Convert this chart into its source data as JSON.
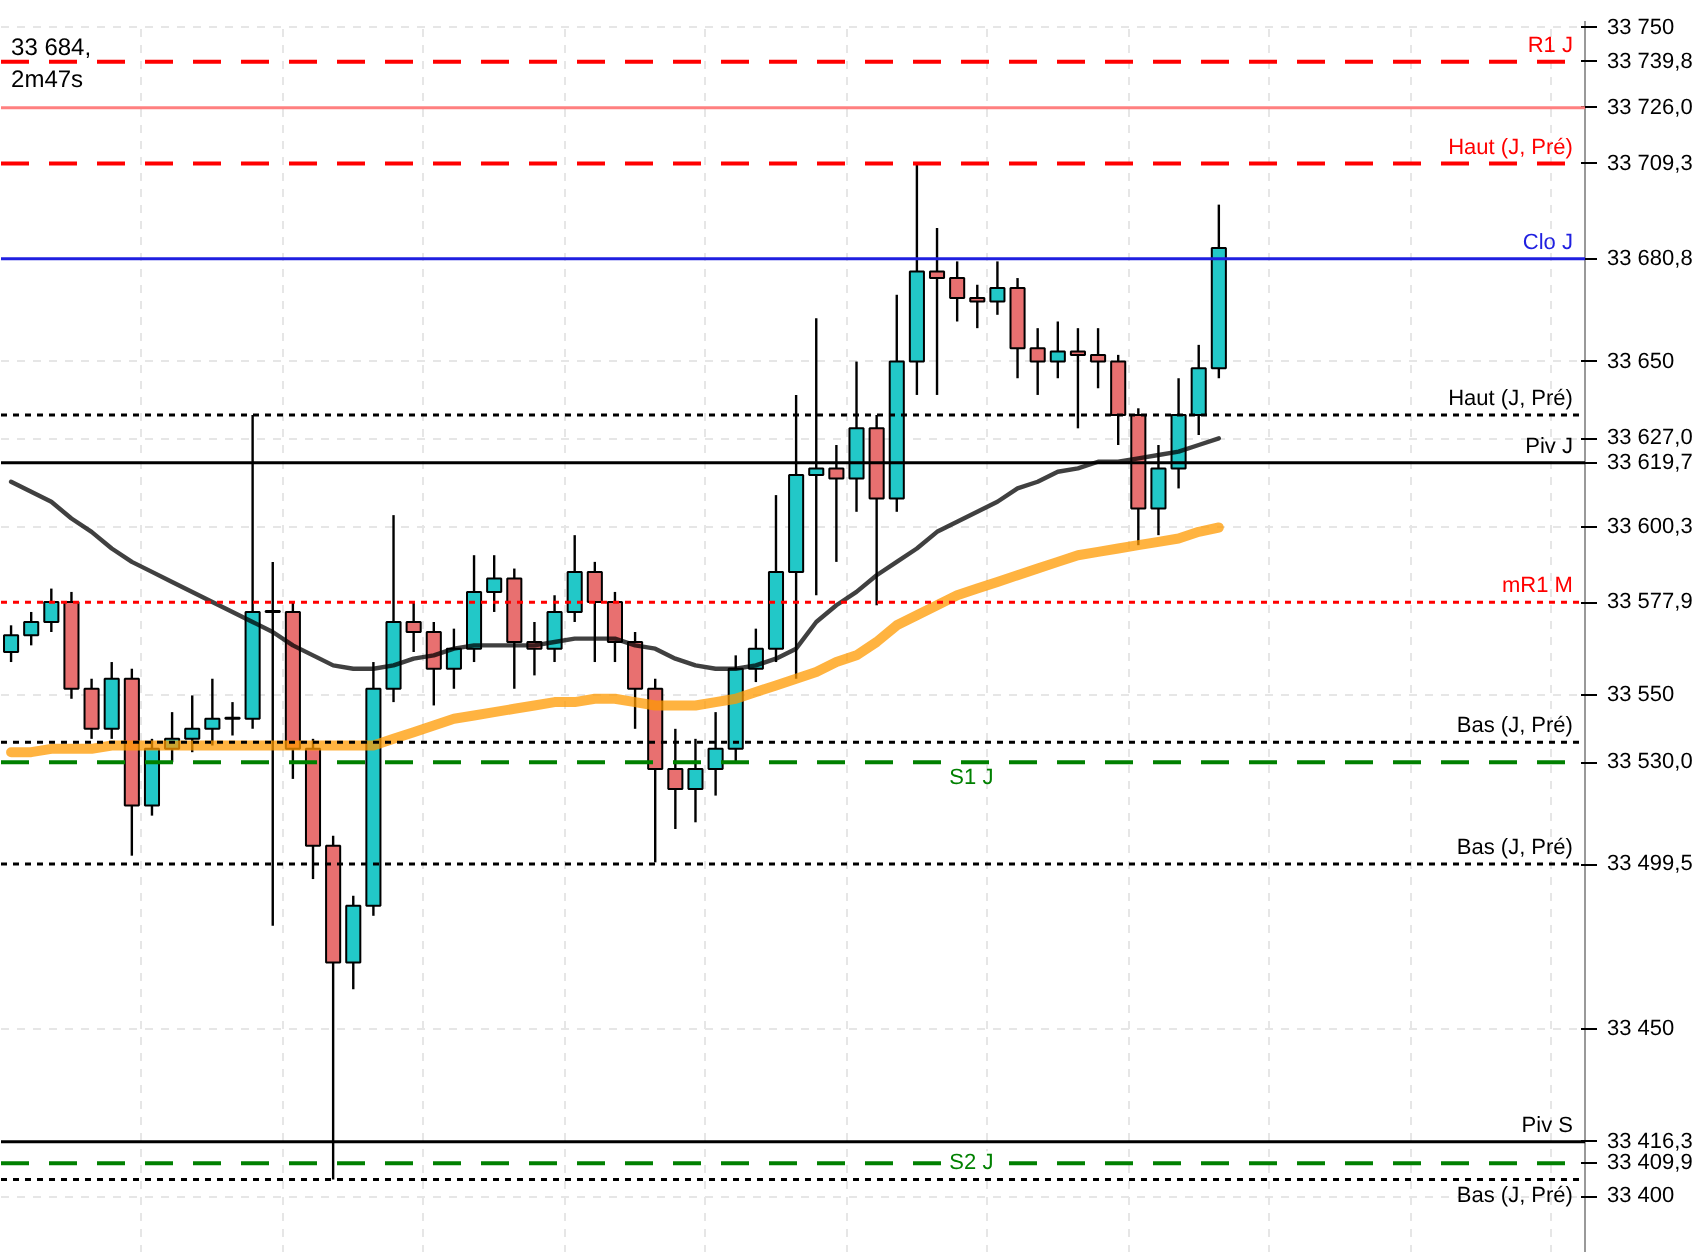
{
  "chart_data": {
    "type": "candlestick",
    "categories": [
      null,
      null,
      null,
      null,
      null,
      null,
      null,
      null,
      null,
      null,
      null,
      null,
      null,
      null,
      null,
      null,
      null,
      null,
      null,
      null,
      null,
      null,
      null,
      null,
      null,
      null,
      null,
      null,
      null,
      null,
      null,
      null,
      null,
      null,
      null,
      null,
      null,
      null,
      null,
      null,
      null,
      null,
      null,
      null,
      null,
      null,
      null,
      null,
      null,
      null,
      null,
      null,
      null,
      null,
      null,
      null,
      null,
      null,
      null,
      null,
      null
    ],
    "ohlc": [
      [
        33563,
        33571,
        33560,
        33568
      ],
      [
        33568,
        33575,
        33565,
        33572
      ],
      [
        33572,
        33582,
        33569,
        33578
      ],
      [
        33578,
        33581,
        33549,
        33552
      ],
      [
        33552,
        33555,
        33537,
        33540
      ],
      [
        33540,
        33560,
        33537,
        33555
      ],
      [
        33555,
        33558,
        33502,
        33517
      ],
      [
        33517,
        33537,
        33514,
        33534
      ],
      [
        33534,
        33545,
        33530,
        33537
      ],
      [
        33537,
        33550,
        33533,
        33540
      ],
      [
        33540,
        33555,
        33535,
        33543
      ],
      [
        33543,
        33548,
        33538,
        33543
      ],
      [
        33543,
        33634,
        33540,
        33575
      ],
      [
        33575,
        33590,
        33481,
        33575
      ],
      [
        33575,
        33578,
        33525,
        33534
      ],
      [
        33534,
        33537,
        33495,
        33505
      ],
      [
        33505,
        33508,
        33405,
        33470
      ],
      [
        33470,
        33490,
        33462,
        33487
      ],
      [
        33487,
        33560,
        33484,
        33552
      ],
      [
        33552,
        33604,
        33548,
        33572
      ],
      [
        33572,
        33578,
        33563,
        33569
      ],
      [
        33569,
        33572,
        33547,
        33558
      ],
      [
        33558,
        33570,
        33552,
        33564
      ],
      [
        33564,
        33592,
        33560,
        33581
      ],
      [
        33581,
        33592,
        33575,
        33585
      ],
      [
        33585,
        33588,
        33552,
        33566
      ],
      [
        33566,
        33572,
        33556,
        33564
      ],
      [
        33564,
        33580,
        33560,
        33575
      ],
      [
        33575,
        33598,
        33572,
        33587
      ],
      [
        33587,
        33590,
        33560,
        33578
      ],
      [
        33578,
        33581,
        33560,
        33566
      ],
      [
        33566,
        33569,
        33540,
        33552
      ],
      [
        33552,
        33555,
        33500,
        33528
      ],
      [
        33528,
        33540,
        33510,
        33522
      ],
      [
        33522,
        33537,
        33512,
        33528
      ],
      [
        33528,
        33545,
        33520,
        33534
      ],
      [
        33534,
        33562,
        33530,
        33558
      ],
      [
        33558,
        33570,
        33554,
        33564
      ],
      [
        33564,
        33610,
        33560,
        33587
      ],
      [
        33587,
        33640,
        33555,
        33616
      ],
      [
        33616,
        33663,
        33580,
        33618
      ],
      [
        33618,
        33625,
        33590,
        33615
      ],
      [
        33615,
        33650,
        33605,
        33630
      ],
      [
        33630,
        33634,
        33577,
        33609
      ],
      [
        33609,
        33670,
        33605,
        33650
      ],
      [
        33650,
        33709,
        33640,
        33677
      ],
      [
        33677,
        33690,
        33640,
        33675
      ],
      [
        33675,
        33680,
        33662,
        33669
      ],
      [
        33669,
        33673,
        33660,
        33668
      ],
      [
        33668,
        33680,
        33664,
        33672
      ],
      [
        33672,
        33675,
        33645,
        33654
      ],
      [
        33654,
        33660,
        33640,
        33650
      ],
      [
        33650,
        33662,
        33645,
        33653
      ],
      [
        33653,
        33660,
        33630,
        33652
      ],
      [
        33652,
        33660,
        33642,
        33650
      ],
      [
        33650,
        33652,
        33625,
        33634
      ],
      [
        33634,
        33636,
        33595,
        33606
      ],
      [
        33606,
        33625,
        33598,
        33618
      ],
      [
        33618,
        33645,
        33612,
        33634
      ],
      [
        33634,
        33655,
        33628,
        33648
      ],
      [
        33648,
        33697,
        33645,
        33684
      ]
    ],
    "series": [
      {
        "type": "line",
        "color": "#000000",
        "values": [
          33614,
          33611,
          33608,
          33603,
          33599,
          33594,
          33590,
          33587,
          33584,
          33581,
          33578,
          33575,
          33572,
          33569,
          33565,
          33562,
          33559,
          33558,
          33558,
          33559,
          33561,
          33562,
          33564,
          33565,
          33565,
          33565,
          33565,
          33566,
          33567,
          33567,
          33567,
          33565,
          33564,
          33561,
          33559,
          33558,
          33558,
          33559,
          33561,
          33564,
          33572,
          33577,
          33581,
          33586,
          33590,
          33594,
          33599,
          33602,
          33605,
          33608,
          33612,
          33614,
          33617,
          33618,
          33620,
          33620,
          33621,
          33622,
          33623,
          33625,
          33627
        ]
      },
      {
        "type": "line",
        "color": "#ff9900",
        "values": [
          33533,
          33533,
          33534,
          33534,
          33534,
          33535,
          33535,
          33535,
          33535,
          33535,
          33535,
          33535,
          33535,
          33535,
          33535,
          33535,
          33535,
          33535,
          33535,
          33537,
          33539,
          33541,
          33543,
          33544,
          33545,
          33546,
          33547,
          33548,
          33548,
          33549,
          33549,
          33548,
          33547,
          33547,
          33547,
          33548,
          33549,
          33551,
          33553,
          33555,
          33557,
          33560,
          33562,
          33566,
          33571,
          33574,
          33577,
          33580,
          33582,
          33584,
          33586,
          33588,
          33590,
          33592,
          33593,
          33594,
          33595,
          33596,
          33597,
          33599,
          33600.3
        ]
      }
    ],
    "ylim": [
      33383,
      33752
    ],
    "yticks": [
      {
        "value": 33750,
        "label": "33 750"
      },
      {
        "value": 33739.8,
        "label": "33 739,8"
      },
      {
        "value": 33726.0,
        "label": "33 726,0"
      },
      {
        "value": 33709.3,
        "label": "33 709,3"
      },
      {
        "value": 33680.8,
        "label": "33 680,8"
      },
      {
        "value": 33650,
        "label": "33 650"
      },
      {
        "value": 33627.0,
        "label": "33 627,0"
      },
      {
        "value": 33619.7,
        "label": "33 619,7"
      },
      {
        "value": 33600.3,
        "label": "33 600,3"
      },
      {
        "value": 33577.9,
        "label": "33 577,9"
      },
      {
        "value": 33550,
        "label": "33 550"
      },
      {
        "value": 33530.0,
        "label": "33 530,0"
      },
      {
        "value": 33499.5,
        "label": "33 499,5"
      },
      {
        "value": 33450,
        "label": "33 450"
      },
      {
        "value": 33416.3,
        "label": "33 416,3"
      },
      {
        "value": 33409.9,
        "label": "33 409,9"
      },
      {
        "value": 33400,
        "label": "33 400"
      }
    ],
    "ref_lines": [
      {
        "axis": "y",
        "value": 33739.8,
        "label": "R1 J",
        "color": "#ff0000",
        "line_style": "dashed"
      },
      {
        "axis": "y",
        "value": 33726.0,
        "label": null,
        "color": "#ff8080",
        "line_style": "solid"
      },
      {
        "axis": "y",
        "value": 33709.3,
        "label": "Haut (J, Pré)",
        "color": "#ff0000",
        "line_style": "dashed"
      },
      {
        "axis": "y",
        "value": 33680.8,
        "label": "Clo J",
        "color": "#2020e0",
        "line_style": "solid"
      },
      {
        "axis": "y",
        "value": 33634,
        "label": "Haut (J, Pré)",
        "color": "#000000",
        "line_style": "dotted"
      },
      {
        "axis": "y",
        "value": 33619.7,
        "label": "Piv J",
        "color": "#000000",
        "line_style": "solid"
      },
      {
        "axis": "y",
        "value": 33577.9,
        "label": "mR1 M",
        "color": "#ff0000",
        "line_style": "dotted"
      },
      {
        "axis": "y",
        "value": 33536,
        "label": "Bas (J, Pré)",
        "color": "#000000",
        "line_style": "dotted"
      },
      {
        "axis": "y",
        "value": 33530.0,
        "label": "S1 J",
        "color": "#008000",
        "line_style": "dashed"
      },
      {
        "axis": "y",
        "value": 33499.5,
        "label": "Bas (J, Pré)",
        "color": "#000000",
        "line_style": "dotted"
      },
      {
        "axis": "y",
        "value": 33416.3,
        "label": "Piv S",
        "color": "#000000",
        "line_style": "solid"
      },
      {
        "axis": "y",
        "value": 33409.9,
        "label": "S2 J",
        "color": "#008000",
        "line_style": "dashed"
      },
      {
        "axis": "y",
        "value": 33405,
        "label": "Bas (J, Pré)",
        "color": "#000000",
        "line_style": "dotted"
      }
    ],
    "annotations": [
      "33 684,",
      "2m47s"
    ],
    "grid": true,
    "tick_labels": "y"
  }
}
